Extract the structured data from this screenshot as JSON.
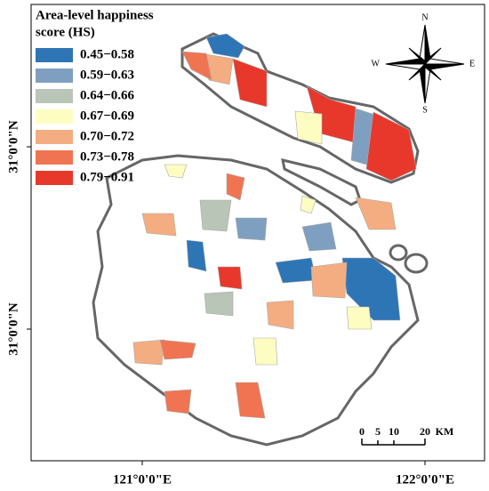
{
  "legend": {
    "title_lines": [
      "Area-level happiness",
      "score (HS)"
    ],
    "items": [
      {
        "label": "0.45−0.58",
        "color": "#2e75b6"
      },
      {
        "label": "0.59−0.63",
        "color": "#7f9fc0"
      },
      {
        "label": "0.64−0.66",
        "color": "#b8c5b7"
      },
      {
        "label": "0.67−0.69",
        "color": "#fdfdc2"
      },
      {
        "label": "0.70−0.72",
        "color": "#f4ad80"
      },
      {
        "label": "0.73−0.78",
        "color": "#f07452"
      },
      {
        "label": "0.79−0.91",
        "color": "#e8382c"
      }
    ]
  },
  "compass": {
    "n": "N",
    "s": "S",
    "e": "E",
    "w": "W"
  },
  "axes": {
    "y_labels": [
      "31°0'0\"N",
      "31°0'0\"N"
    ],
    "x_labels": [
      "121°0'0\"E",
      "122°0'0\"E"
    ]
  },
  "scale_bar": {
    "labels": [
      "0",
      "5",
      "10",
      "20",
      "KM"
    ]
  }
}
